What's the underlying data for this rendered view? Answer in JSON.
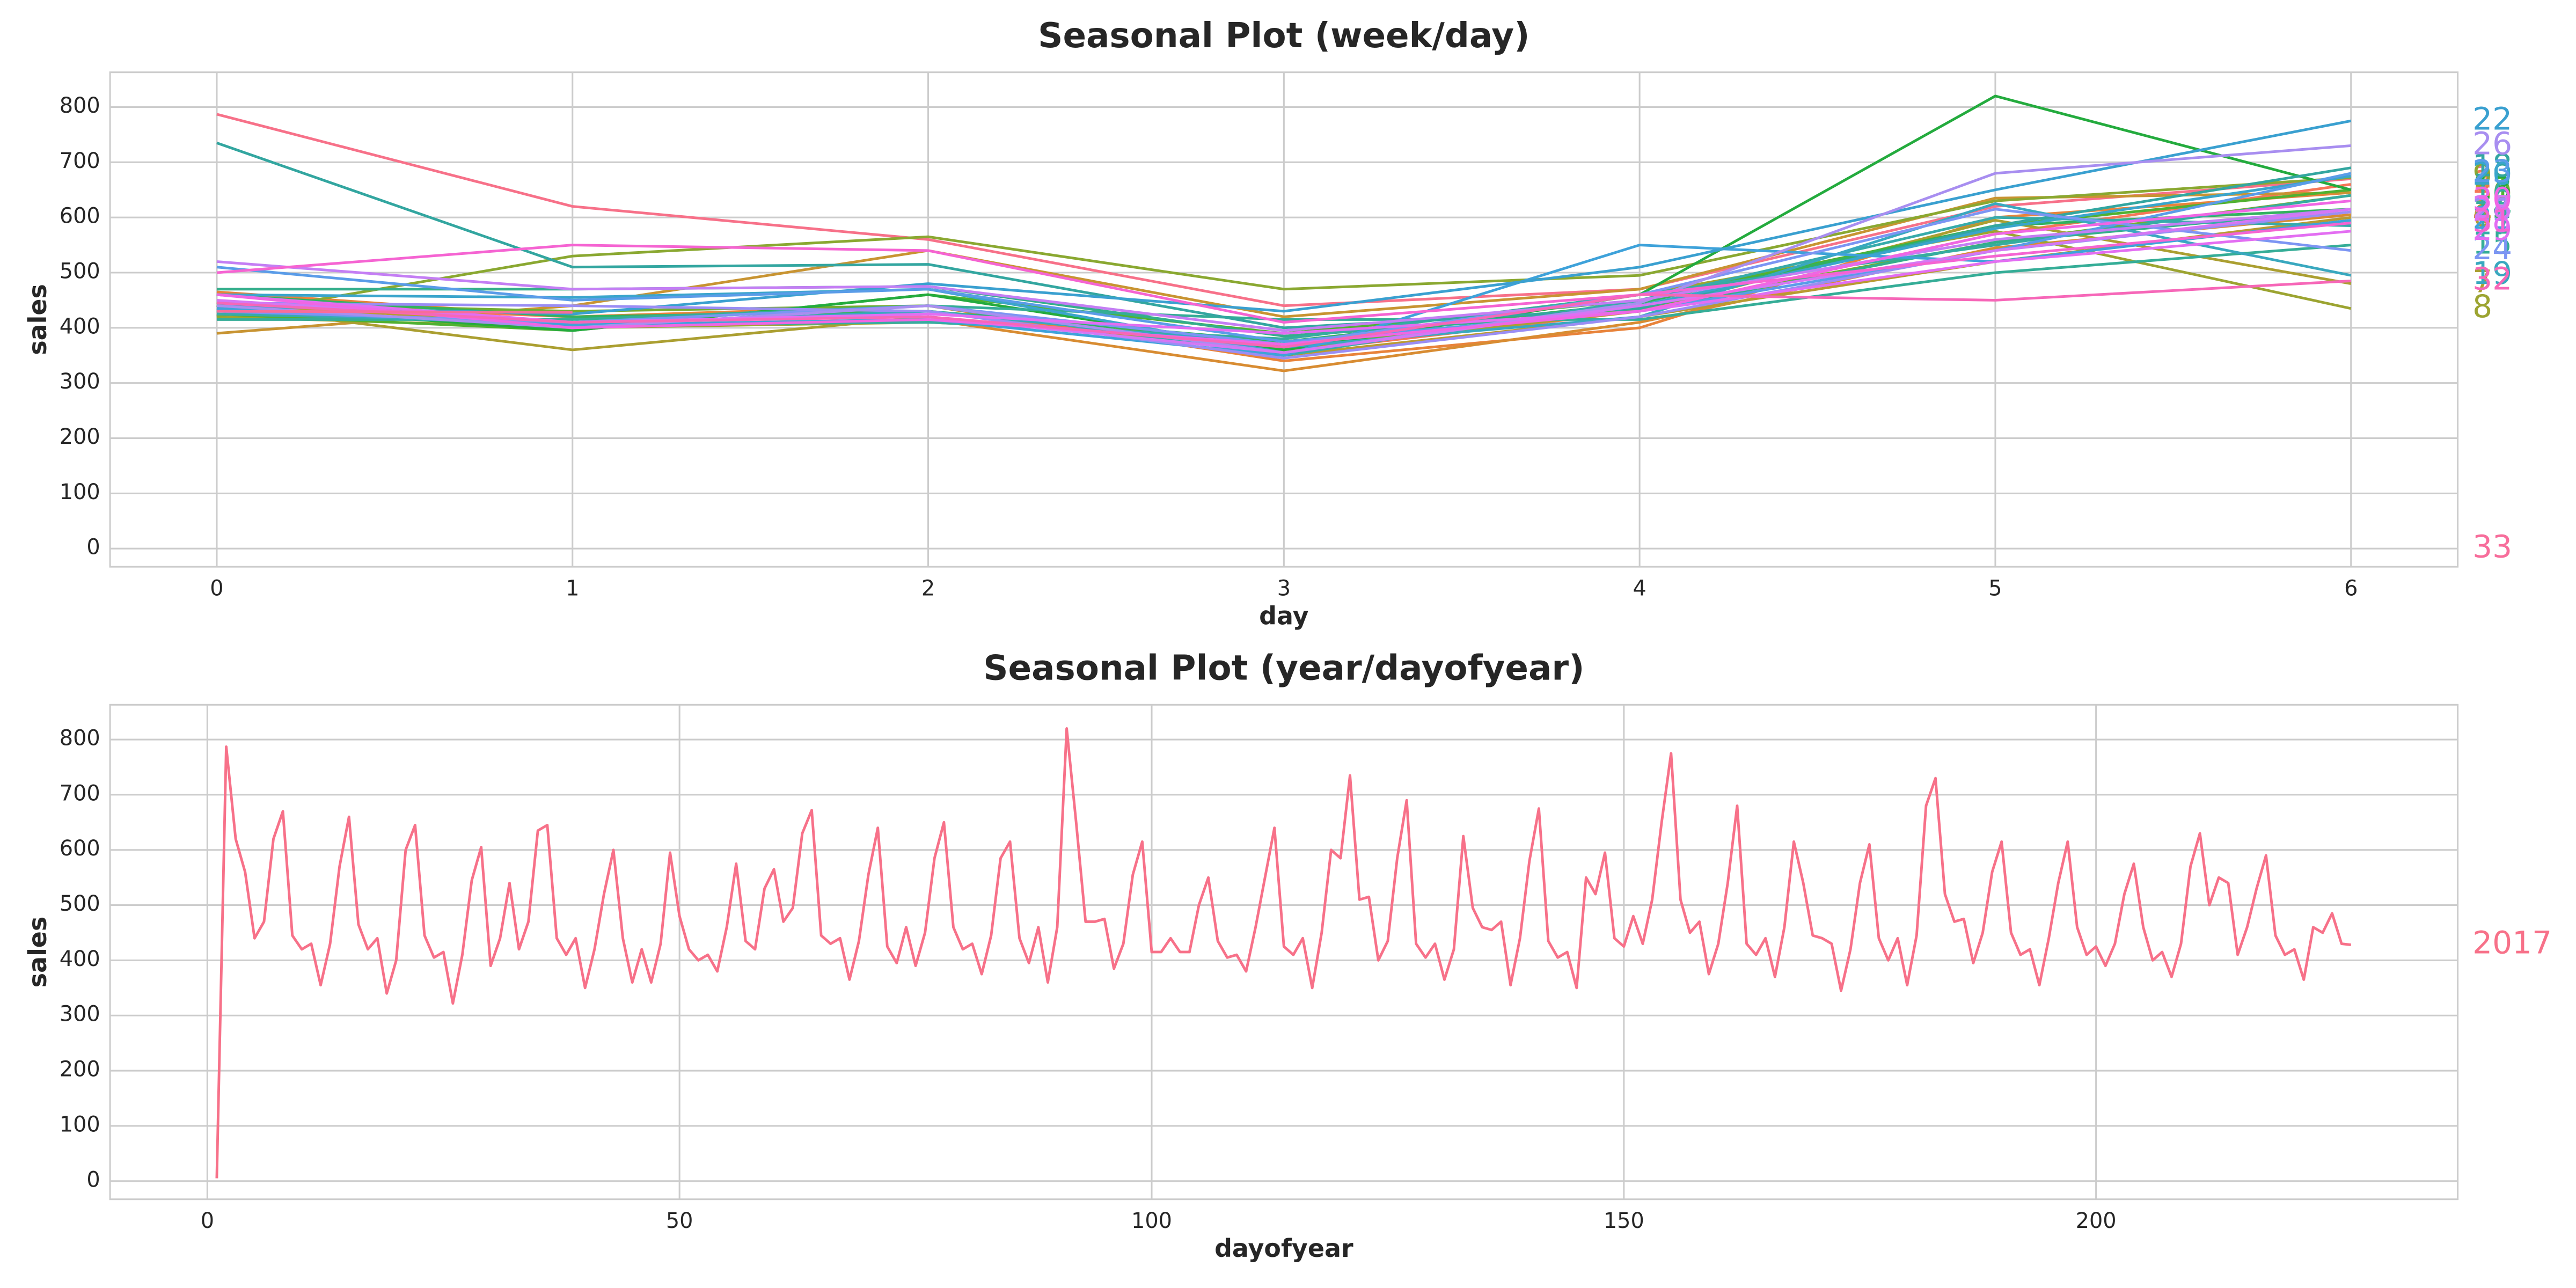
{
  "chart_data": [
    {
      "type": "line",
      "title": "Seasonal Plot (week/day)",
      "xlabel": "day",
      "ylabel": "sales",
      "grid": true,
      "x": [
        0,
        1,
        2,
        3,
        4,
        5,
        6
      ],
      "xlim": [
        -0.3,
        6.3
      ],
      "xticks": [
        0,
        1,
        2,
        3,
        4,
        5,
        6
      ],
      "ylim": [
        -33,
        863
      ],
      "yticks": [
        0,
        100,
        200,
        300,
        400,
        500,
        600,
        700,
        800
      ],
      "series": [
        {
          "name": "1",
          "color": "#f77189",
          "values": [
            787,
            620,
            560,
            440,
            470,
            620,
            670
          ]
        },
        {
          "name": "2",
          "color": "#f67657",
          "values": [
            445,
            420,
            430,
            355,
            430,
            570,
            660
          ]
        },
        {
          "name": "3",
          "color": "#e8833a",
          "values": [
            465,
            420,
            440,
            340,
            400,
            600,
            645
          ]
        },
        {
          "name": "4",
          "color": "#d88c32",
          "values": [
            445,
            405,
            415,
            322,
            410,
            545,
            605
          ]
        },
        {
          "name": "5",
          "color": "#c89432",
          "values": [
            390,
            440,
            540,
            420,
            470,
            635,
            645
          ]
        },
        {
          "name": "6",
          "color": "#b99a31",
          "values": [
            440,
            410,
            440,
            350,
            420,
            520,
            600
          ]
        },
        {
          "name": "7",
          "color": "#ab9f31",
          "values": [
            440,
            360,
            420,
            360,
            430,
            595,
            480
          ]
        },
        {
          "name": "8",
          "color": "#9ca431",
          "values": [
            420,
            400,
            410,
            380,
            460,
            575,
            435
          ]
        },
        {
          "name": "9",
          "color": "#8aa831",
          "values": [
            420,
            530,
            565,
            470,
            495,
            630,
            672
          ]
        },
        {
          "name": "10",
          "color": "#73ac31",
          "values": [
            445,
            430,
            440,
            365,
            435,
            555,
            640
          ]
        },
        {
          "name": "11",
          "color": "#50b131",
          "values": [
            425,
            395,
            460,
            390,
            450,
            585,
            650
          ]
        },
        {
          "name": "12",
          "color": "#32b15f",
          "values": [
            460,
            420,
            430,
            375,
            445,
            585,
            615
          ]
        },
        {
          "name": "13",
          "color": "#24ab3e",
          "values": [
            440,
            395,
            460,
            360,
            460,
            820,
            650
          ]
        },
        {
          "name": "14",
          "color": "#34ae8b",
          "values": [
            470,
            470,
            475,
            385,
            430,
            555,
            615
          ]
        },
        {
          "name": "15",
          "color": "#35ad97",
          "values": [
            415,
            415,
            440,
            415,
            415,
            500,
            550
          ]
        },
        {
          "name": "16",
          "color": "#36aca1",
          "values": [
            435,
            405,
            410,
            380,
            460,
            550,
            640
          ]
        },
        {
          "name": "17",
          "color": "#37abaa",
          "values": [
            425,
            410,
            440,
            350,
            450,
            600,
            585
          ]
        },
        {
          "name": "18",
          "color": "#33a6a0",
          "values": [
            735,
            510,
            515,
            400,
            435,
            585,
            690
          ]
        },
        {
          "name": "19",
          "color": "#39a8bf",
          "values": [
            430,
            405,
            430,
            365,
            420,
            625,
            495
          ]
        },
        {
          "name": "20",
          "color": "#3aa5cc",
          "values": [
            460,
            455,
            470,
            355,
            440,
            580,
            675
          ]
        },
        {
          "name": "21",
          "color": "#3ea2da",
          "values": [
            435,
            405,
            415,
            350,
            550,
            520,
            595
          ]
        },
        {
          "name": "22",
          "color": "#3aa0d0",
          "values": [
            440,
            425,
            480,
            430,
            510,
            650,
            775
          ]
        },
        {
          "name": "23",
          "color": "#5a9ce8",
          "values": [
            510,
            450,
            470,
            375,
            430,
            540,
            680
          ]
        },
        {
          "name": "24",
          "color": "#7c95f3",
          "values": [
            430,
            410,
            440,
            370,
            460,
            615,
            540
          ]
        },
        {
          "name": "25",
          "color": "#9a8df4",
          "values": [
            445,
            440,
            430,
            345,
            420,
            540,
            610
          ]
        },
        {
          "name": "26",
          "color": "#a88ef0",
          "values": [
            440,
            400,
            440,
            355,
            445,
            680,
            730
          ]
        },
        {
          "name": "27",
          "color": "#c47ef4",
          "values": [
            520,
            470,
            475,
            395,
            450,
            560,
            615
          ]
        },
        {
          "name": "28",
          "color": "#d577f4",
          "values": [
            450,
            410,
            420,
            355,
            440,
            540,
            615
          ]
        },
        {
          "name": "29",
          "color": "#e36ef2",
          "values": [
            460,
            410,
            425,
            390,
            430,
            520,
            575
          ]
        },
        {
          "name": "30",
          "color": "#f066e4",
          "values": [
            460,
            400,
            415,
            370,
            430,
            570,
            630
          ]
        },
        {
          "name": "31",
          "color": "#f564d2",
          "values": [
            500,
            550,
            540,
            410,
            460,
            530,
            590
          ]
        },
        {
          "name": "32",
          "color": "#f667b8",
          "values": [
            445,
            410,
            420,
            365,
            460,
            450,
            485
          ]
        },
        {
          "name": "33",
          "color": "#f76d9b",
          "values": [
            430,
            428,
            null,
            null,
            null,
            null,
            null
          ]
        }
      ]
    },
    {
      "type": "line",
      "title": "Seasonal Plot (year/dayofyear)",
      "xlabel": "dayofyear",
      "ylabel": "sales",
      "grid": true,
      "x": [
        1,
        2,
        3,
        4,
        5,
        6,
        7,
        8,
        9,
        10,
        11,
        12,
        13,
        14,
        15,
        16,
        17,
        18,
        19,
        20,
        21,
        22,
        23,
        24,
        25,
        26,
        27,
        28,
        29,
        30,
        31,
        32,
        33,
        34,
        35,
        36,
        37,
        38,
        39,
        40,
        41,
        42,
        43,
        44,
        45,
        46,
        47,
        48,
        49,
        50,
        51,
        52,
        53,
        54,
        55,
        56,
        57,
        58,
        59,
        60,
        61,
        62,
        63,
        64,
        65,
        66,
        67,
        68,
        69,
        70,
        71,
        72,
        73,
        74,
        75,
        76,
        77,
        78,
        79,
        80,
        81,
        82,
        83,
        84,
        85,
        86,
        87,
        88,
        89,
        90,
        91,
        92,
        93,
        94,
        95,
        96,
        97,
        98,
        99,
        100,
        101,
        102,
        103,
        104,
        105,
        106,
        107,
        108,
        109,
        110,
        111,
        112,
        113,
        114,
        115,
        116,
        117,
        118,
        119,
        120,
        121,
        122,
        123,
        124,
        125,
        126,
        127,
        128,
        129,
        130,
        131,
        132,
        133,
        134,
        135,
        136,
        137,
        138,
        139,
        140,
        141,
        142,
        143,
        144,
        145,
        146,
        147,
        148,
        149,
        150,
        151,
        152,
        153,
        154,
        155,
        156,
        157,
        158,
        159,
        160,
        161,
        162,
        163,
        164,
        165,
        166,
        167,
        168,
        169,
        170,
        171,
        172,
        173,
        174,
        175,
        176,
        177,
        178,
        179,
        180,
        181,
        182,
        183,
        184,
        185,
        186,
        187,
        188,
        189,
        190,
        191,
        192,
        193,
        194,
        195,
        196,
        197,
        198,
        199,
        200,
        201,
        202,
        203,
        204,
        205,
        206,
        207,
        208,
        209,
        210,
        211,
        212,
        213,
        214,
        215,
        216,
        217,
        218,
        219,
        220,
        221,
        222,
        223,
        224,
        225,
        226,
        227
      ],
      "xlim": [
        -10.3,
        238.3
      ],
      "xticks": [
        0,
        50,
        100,
        150,
        200
      ],
      "ylim": [
        -33,
        863
      ],
      "yticks": [
        0,
        100,
        200,
        300,
        400,
        500,
        600,
        700,
        800
      ],
      "series": [
        {
          "name": "2017",
          "color": "#f77189",
          "values": [
            5,
            787,
            620,
            560,
            440,
            470,
            620,
            670,
            445,
            420,
            430,
            355,
            430,
            570,
            660,
            465,
            420,
            440,
            340,
            400,
            600,
            645,
            445,
            405,
            415,
            322,
            410,
            545,
            605,
            390,
            440,
            540,
            420,
            470,
            635,
            645,
            440,
            410,
            440,
            350,
            420,
            520,
            600,
            440,
            360,
            420,
            360,
            430,
            595,
            480,
            420,
            400,
            410,
            380,
            460,
            575,
            435,
            420,
            530,
            565,
            470,
            495,
            630,
            672,
            445,
            430,
            440,
            365,
            435,
            555,
            640,
            425,
            395,
            460,
            390,
            450,
            585,
            650,
            460,
            420,
            430,
            375,
            445,
            585,
            615,
            440,
            395,
            460,
            360,
            460,
            820,
            650,
            470,
            470,
            475,
            385,
            430,
            555,
            615,
            415,
            415,
            440,
            415,
            415,
            500,
            550,
            435,
            405,
            410,
            380,
            460,
            550,
            640,
            425,
            410,
            440,
            350,
            450,
            600,
            585,
            735,
            510,
            515,
            400,
            435,
            585,
            690,
            430,
            405,
            430,
            365,
            420,
            625,
            495,
            460,
            455,
            470,
            355,
            440,
            580,
            675,
            435,
            405,
            415,
            350,
            550,
            520,
            595,
            440,
            425,
            480,
            430,
            510,
            650,
            775,
            510,
            450,
            470,
            375,
            430,
            540,
            680,
            430,
            410,
            440,
            370,
            460,
            615,
            540,
            445,
            440,
            430,
            345,
            420,
            540,
            610,
            440,
            400,
            440,
            355,
            445,
            680,
            730,
            520,
            470,
            475,
            395,
            450,
            560,
            615,
            450,
            410,
            420,
            355,
            440,
            540,
            615,
            460,
            410,
            425,
            390,
            430,
            520,
            575,
            460,
            400,
            415,
            370,
            430,
            570,
            630,
            500,
            550,
            540,
            410,
            460,
            530,
            590,
            445,
            410,
            420,
            365,
            460,
            450,
            485,
            430,
            428
          ]
        }
      ]
    }
  ]
}
